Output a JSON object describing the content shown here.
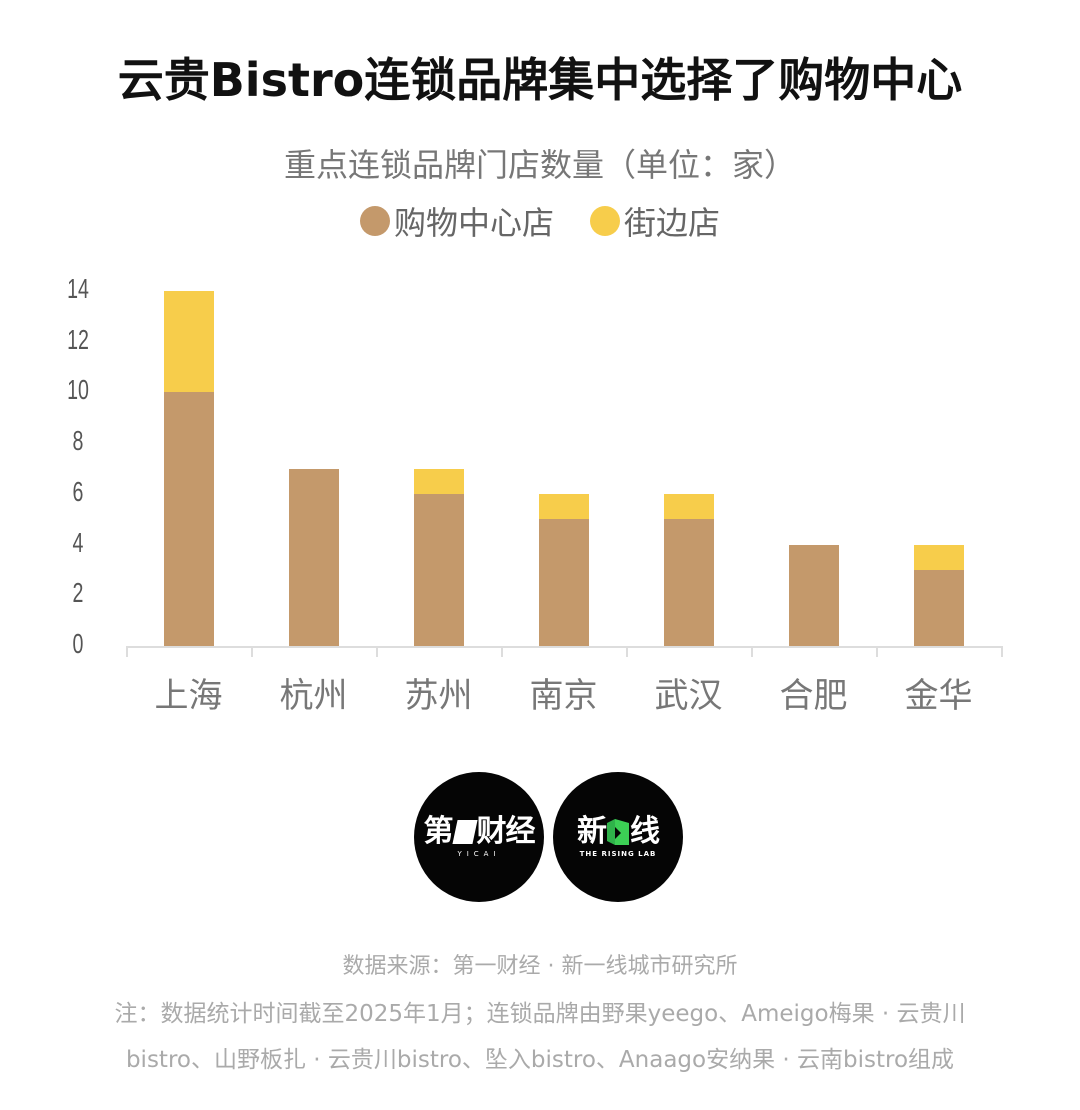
{
  "header": {
    "title": "云贵Bistro连锁品牌集中选择了购物中心",
    "subtitle": "重点连锁品牌门店数量（单位：家）"
  },
  "legend": {
    "items": [
      {
        "label": "购物中心店",
        "color": "#c4996b"
      },
      {
        "label": "街边店",
        "color": "#f7cd4b"
      }
    ]
  },
  "chart_data": {
    "type": "bar",
    "stacked": true,
    "title": "云贵Bistro连锁品牌集中选择了购物中心",
    "subtitle": "重点连锁品牌门店数量（单位：家）",
    "categories": [
      "上海",
      "杭州",
      "苏州",
      "南京",
      "武汉",
      "合肥",
      "金华"
    ],
    "series": [
      {
        "name": "购物中心店",
        "color": "#c4996b",
        "values": [
          10,
          7,
          6,
          5,
          5,
          4,
          3
        ]
      },
      {
        "name": "街边店",
        "color": "#f7cd4b",
        "values": [
          4,
          0,
          1,
          1,
          1,
          0,
          1
        ]
      }
    ],
    "xlabel": "",
    "ylabel": "",
    "ylim": [
      0,
      14
    ],
    "yticks": [
      "0",
      "2",
      "4",
      "6",
      "8",
      "10",
      "12",
      "14"
    ],
    "grid": false,
    "legend_position": "top"
  },
  "logos": {
    "yicai": {
      "main_a": "第",
      "main_b": "财经",
      "sub": "YICAI"
    },
    "risinglab": {
      "main_a": "新",
      "main_b": "线",
      "sub": "THE RISING LAB"
    }
  },
  "footer": {
    "source": "数据来源：第一财经 · 新一线城市研究所",
    "note_line1": "注：数据统计时间截至2025年1月；连锁品牌由野果yeego、Ameigo梅果 · 云贵川",
    "note_line2": "bistro、山野板扎 · 云贵川bistro、坠入bistro、Anaago安纳果 · 云南bistro组成"
  }
}
